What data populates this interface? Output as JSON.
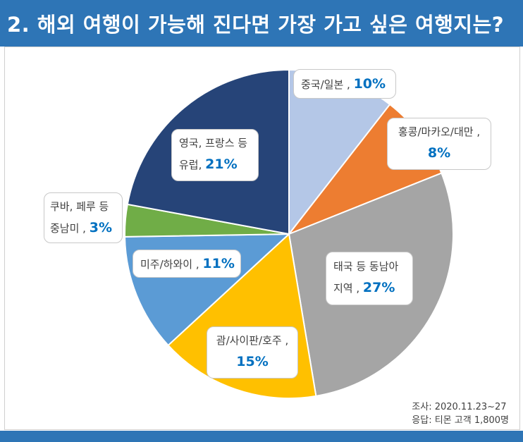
{
  "title": "2. 해외 여행이 가능해 진다면 가장 가고 싶은 여행지는?",
  "colors": {
    "header": "#2e75b6",
    "accent": "#0070c0"
  },
  "chart_data": {
    "type": "pie",
    "title": "",
    "slices": [
      {
        "name": "중국/일본",
        "value": 10,
        "label": "10%",
        "color": "#b4c7e7"
      },
      {
        "name": "홍콩/마카오/대만",
        "value": 8,
        "label": "8%",
        "color": "#ed7d31"
      },
      {
        "name": "태국 등 동남아 지역",
        "value": 27,
        "label": "27%",
        "color": "#a5a5a5"
      },
      {
        "name": "괌/사이판/호주",
        "value": 15,
        "label": "15%",
        "color": "#ffc000"
      },
      {
        "name": "미주/하와이",
        "value": 11,
        "label": "11%",
        "color": "#5b9bd5"
      },
      {
        "name": "쿠바, 페루 등 중남미",
        "value": 3,
        "label": "3%",
        "color": "#70ad47"
      },
      {
        "name": "영국, 프랑스 등 유럽",
        "value": 21,
        "label": "21%",
        "color": "#264478"
      }
    ]
  },
  "labels": [
    {
      "line1": "중국/일본 ,",
      "line2": "",
      "pct": "10%"
    },
    {
      "line1": "홍콩/마카오/대만 ,",
      "line2": "",
      "pct": "8%"
    },
    {
      "line1": "태국 등 동남아",
      "line2": "지역 ,",
      "pct": "27%"
    },
    {
      "line1": "괌/사이판/호주 ,",
      "line2": "",
      "pct": "15%"
    },
    {
      "line1": "미주/하와이 ,",
      "line2": "",
      "pct": "11%"
    },
    {
      "line1": "쿠바, 페루 등",
      "line2": "중남미 ,",
      "pct": "3%"
    },
    {
      "line1": "영국, 프랑스 등",
      "line2": "유럽,",
      "pct": "21%"
    }
  ],
  "notes": {
    "survey": "조사: 2020.11.23~27",
    "respondents": "응답: 티몬 고객 1,800명"
  }
}
